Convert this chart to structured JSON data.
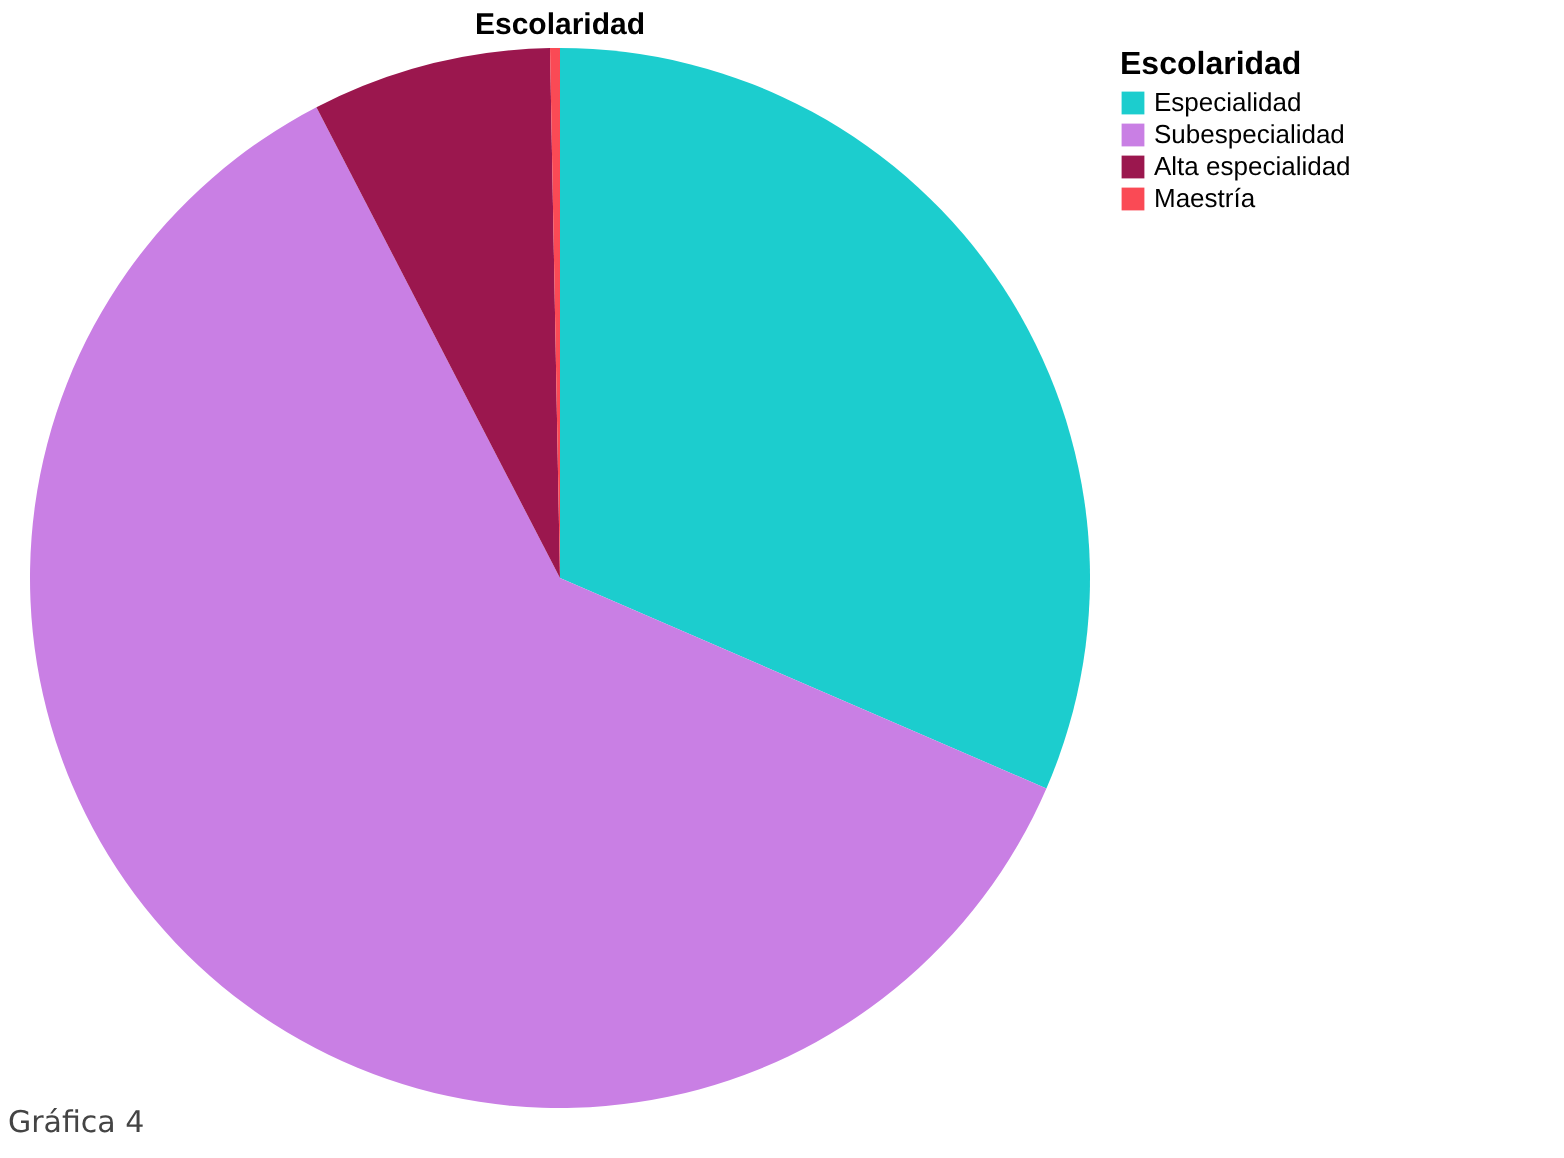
{
  "chart_data": {
    "type": "pie",
    "title": "Escolaridad",
    "legend_title": "Escolaridad",
    "categories": [
      "Especialidad",
      "Subespecialidad",
      "Alta especialidad",
      "Maestría"
    ],
    "values": [
      31.5,
      60.9,
      7.3,
      0.3
    ],
    "colors": [
      "#1ccdce",
      "#c97fe4",
      "#9b174e",
      "#fa4a55"
    ],
    "legend": "top right",
    "annotations": [
      "Gráfica 4"
    ]
  }
}
